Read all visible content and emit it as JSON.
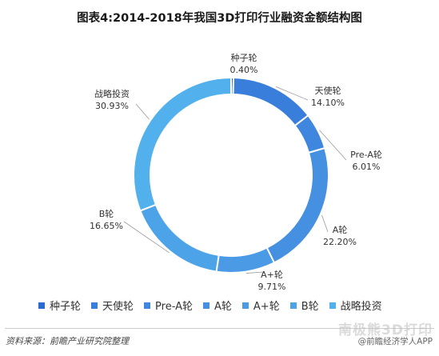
{
  "title": "图表4:2014-2018年我国3D打印行业融资金额结构图",
  "chart_data": {
    "type": "pie",
    "variant": "donut",
    "categories": [
      "种子轮",
      "天使轮",
      "Pre-A轮",
      "A轮",
      "A+轮",
      "B轮",
      "战略投资"
    ],
    "values": [
      0.4,
      14.1,
      6.01,
      22.2,
      9.71,
      16.65,
      30.93
    ],
    "value_labels": [
      "0.40%",
      "14.10%",
      "6.01%",
      "22.20%",
      "9.71%",
      "16.65%",
      "30.93%"
    ],
    "colors": [
      "#2A6BD1",
      "#3A7EDB",
      "#3F86DE",
      "#4690E2",
      "#4A9AE5",
      "#4DA3E8",
      "#52B1EC"
    ],
    "legend_position": "bottom"
  },
  "footer": {
    "source": "资料来源：前瞻产业研究院整理",
    "credit": "@前瞻经济学人APP",
    "watermark": "南极熊3D打印"
  }
}
